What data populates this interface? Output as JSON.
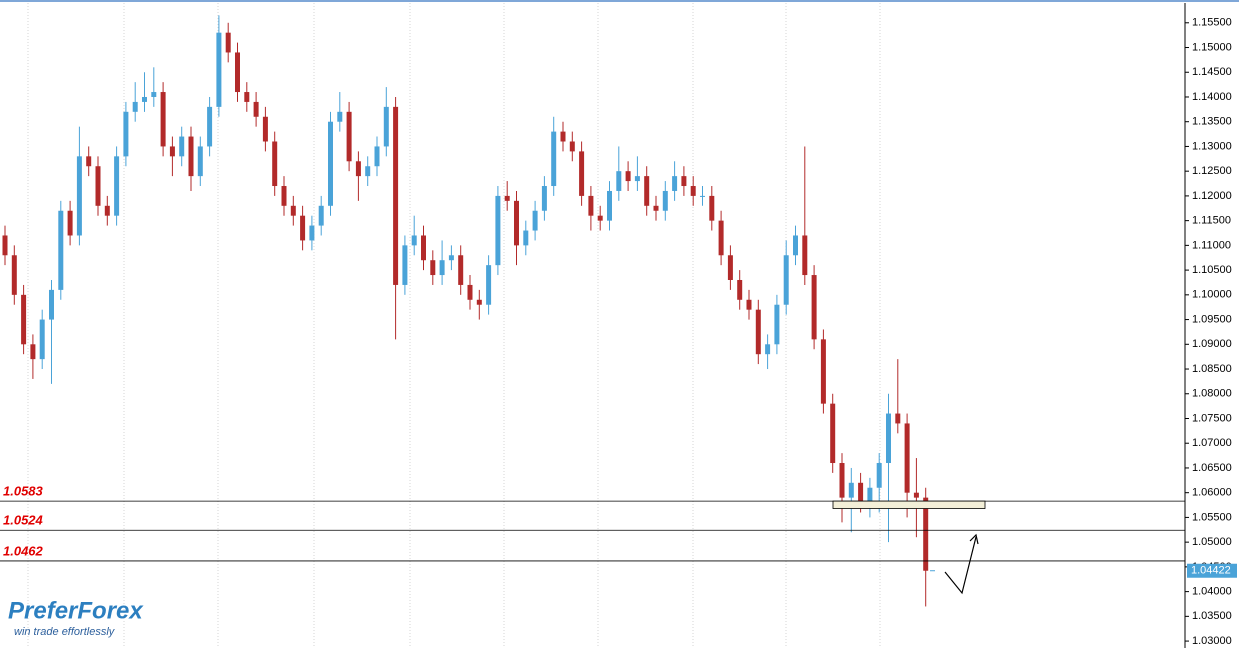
{
  "chart_data": {
    "type": "candlestick",
    "up_color": "#4aa3d8",
    "down_color": "#b22a2a",
    "ylim": [
      1.0286,
      1.159
    ],
    "yticks": [
      {
        "value": 1.03,
        "label": "1.03000"
      },
      {
        "value": 1.035,
        "label": "1.03500"
      },
      {
        "value": 1.04,
        "label": "1.04000"
      },
      {
        "value": 1.045,
        "label": "1.04500"
      },
      {
        "value": 1.05,
        "label": "1.05000"
      },
      {
        "value": 1.055,
        "label": "1.05500"
      },
      {
        "value": 1.06,
        "label": "1.06000"
      },
      {
        "value": 1.065,
        "label": "1.06500"
      },
      {
        "value": 1.07,
        "label": "1.07000"
      },
      {
        "value": 1.075,
        "label": "1.07500"
      },
      {
        "value": 1.08,
        "label": "1.08000"
      },
      {
        "value": 1.085,
        "label": "1.08500"
      },
      {
        "value": 1.09,
        "label": "1.09000"
      },
      {
        "value": 1.095,
        "label": "1.09500"
      },
      {
        "value": 1.1,
        "label": "1.10000"
      },
      {
        "value": 1.105,
        "label": "1.10500"
      },
      {
        "value": 1.11,
        "label": "1.11000"
      },
      {
        "value": 1.115,
        "label": "1.11500"
      },
      {
        "value": 1.12,
        "label": "1.12000"
      },
      {
        "value": 1.125,
        "label": "1.12500"
      },
      {
        "value": 1.13,
        "label": "1.13000"
      },
      {
        "value": 1.135,
        "label": "1.13500"
      },
      {
        "value": 1.14,
        "label": "1.14000"
      },
      {
        "value": 1.145,
        "label": "1.14500"
      },
      {
        "value": 1.15,
        "label": "1.15000"
      },
      {
        "value": 1.155,
        "label": "1.15500"
      }
    ],
    "open": [
      1.112,
      1.108,
      1.1,
      1.09,
      1.087,
      1.095,
      1.101,
      1.117,
      1.112,
      1.128,
      1.126,
      1.118,
      1.116,
      1.128,
      1.137,
      1.139,
      1.14,
      1.141,
      1.13,
      1.128,
      1.132,
      1.124,
      1.13,
      1.138,
      1.153,
      1.149,
      1.141,
      1.139,
      1.136,
      1.131,
      1.122,
      1.118,
      1.116,
      1.111,
      1.114,
      1.118,
      1.135,
      1.137,
      1.127,
      1.124,
      1.126,
      1.13,
      1.138,
      1.102,
      1.11,
      1.112,
      1.107,
      1.104,
      1.107,
      1.108,
      1.102,
      1.099,
      1.098,
      1.106,
      1.12,
      1.119,
      1.11,
      1.113,
      1.117,
      1.122,
      1.133,
      1.131,
      1.129,
      1.12,
      1.116,
      1.115,
      1.121,
      1.125,
      1.123,
      1.124,
      1.118,
      1.117,
      1.121,
      1.124,
      1.122,
      1.12,
      1.12,
      1.115,
      1.108,
      1.103,
      1.099,
      1.097,
      1.088,
      1.09,
      1.098,
      1.108,
      1.112,
      1.104,
      1.091,
      1.078,
      1.066,
      1.059,
      1.062,
      1.058,
      1.061,
      1.066,
      1.076,
      1.074,
      1.06,
      1.059
    ],
    "high": [
      1.114,
      1.11,
      1.102,
      1.092,
      1.097,
      1.103,
      1.119,
      1.119,
      1.134,
      1.13,
      1.128,
      1.12,
      1.13,
      1.139,
      1.143,
      1.145,
      1.146,
      1.143,
      1.132,
      1.134,
      1.134,
      1.132,
      1.14,
      1.1565,
      1.155,
      1.151,
      1.143,
      1.141,
      1.138,
      1.133,
      1.124,
      1.12,
      1.118,
      1.116,
      1.12,
      1.137,
      1.141,
      1.139,
      1.129,
      1.128,
      1.132,
      1.142,
      1.14,
      1.112,
      1.116,
      1.114,
      1.109,
      1.111,
      1.11,
      1.11,
      1.104,
      1.101,
      1.108,
      1.122,
      1.123,
      1.121,
      1.115,
      1.119,
      1.124,
      1.136,
      1.135,
      1.133,
      1.131,
      1.122,
      1.118,
      1.123,
      1.13,
      1.127,
      1.128,
      1.126,
      1.12,
      1.123,
      1.127,
      1.126,
      1.124,
      1.122,
      1.122,
      1.117,
      1.11,
      1.105,
      1.101,
      1.099,
      1.092,
      1.1,
      1.111,
      1.114,
      1.13,
      1.106,
      1.093,
      1.08,
      1.068,
      1.065,
      1.064,
      1.063,
      1.068,
      1.08,
      1.087,
      1.076,
      1.067,
      1.061
    ],
    "low": [
      1.106,
      1.098,
      1.088,
      1.083,
      1.085,
      1.082,
      1.099,
      1.11,
      1.11,
      1.124,
      1.116,
      1.114,
      1.114,
      1.126,
      1.135,
      1.137,
      1.138,
      1.128,
      1.124,
      1.126,
      1.121,
      1.122,
      1.128,
      1.136,
      1.147,
      1.139,
      1.137,
      1.134,
      1.129,
      1.12,
      1.116,
      1.114,
      1.109,
      1.109,
      1.112,
      1.116,
      1.133,
      1.125,
      1.119,
      1.122,
      1.124,
      1.128,
      1.091,
      1.1,
      1.108,
      1.105,
      1.102,
      1.102,
      1.105,
      1.1,
      1.097,
      1.095,
      1.096,
      1.104,
      1.117,
      1.106,
      1.108,
      1.111,
      1.115,
      1.12,
      1.129,
      1.127,
      1.118,
      1.113,
      1.113,
      1.113,
      1.119,
      1.121,
      1.121,
      1.116,
      1.115,
      1.115,
      1.119,
      1.12,
      1.118,
      1.118,
      1.113,
      1.106,
      1.101,
      1.097,
      1.095,
      1.086,
      1.085,
      1.088,
      1.096,
      1.106,
      1.102,
      1.089,
      1.076,
      1.064,
      1.054,
      1.052,
      1.056,
      1.055,
      1.056,
      1.05,
      1.072,
      1.055,
      1.051,
      1.037
    ],
    "close": [
      1.108,
      1.1,
      1.09,
      1.087,
      1.095,
      1.101,
      1.117,
      1.112,
      1.128,
      1.126,
      1.118,
      1.116,
      1.128,
      1.137,
      1.139,
      1.14,
      1.141,
      1.13,
      1.128,
      1.132,
      1.124,
      1.13,
      1.138,
      1.153,
      1.149,
      1.141,
      1.139,
      1.136,
      1.131,
      1.122,
      1.118,
      1.116,
      1.111,
      1.114,
      1.118,
      1.135,
      1.137,
      1.127,
      1.124,
      1.126,
      1.13,
      1.138,
      1.102,
      1.11,
      1.112,
      1.107,
      1.104,
      1.107,
      1.108,
      1.102,
      1.099,
      1.098,
      1.106,
      1.12,
      1.119,
      1.11,
      1.113,
      1.117,
      1.122,
      1.133,
      1.131,
      1.129,
      1.12,
      1.116,
      1.115,
      1.121,
      1.125,
      1.123,
      1.124,
      1.118,
      1.117,
      1.121,
      1.124,
      1.122,
      1.12,
      1.12,
      1.115,
      1.108,
      1.103,
      1.099,
      1.097,
      1.088,
      1.09,
      1.098,
      1.108,
      1.112,
      1.104,
      1.091,
      1.078,
      1.066,
      1.059,
      1.062,
      1.058,
      1.061,
      1.066,
      1.076,
      1.074,
      1.06,
      1.059,
      1.04422
    ],
    "levels": [
      1.0583,
      1.0524,
      1.0462
    ],
    "zone": {
      "low": 1.0568,
      "high": 1.0583
    },
    "current_price": 1.04422,
    "logo": {
      "brand": "PreferForex",
      "tagline": "win trade effortlessly"
    }
  }
}
